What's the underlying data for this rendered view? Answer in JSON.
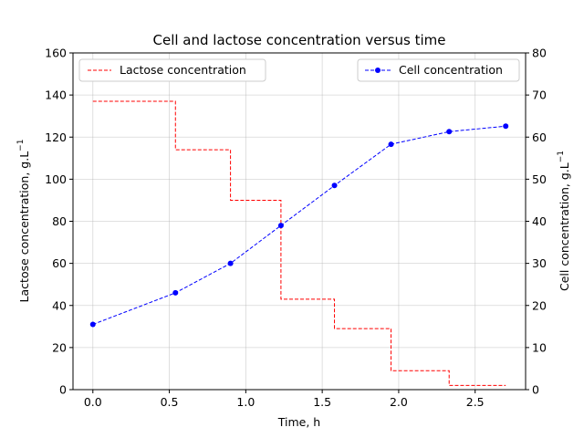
{
  "chart_data": {
    "type": "line",
    "title": "Cell and lactose concentration versus time",
    "xlabel": "Time, h",
    "ylabel_left": "Lactose concentration, g.L",
    "ylabel_right": "Cell concentration, g.L",
    "ylabel_unit_sup": "−1",
    "xlim": [
      -0.13,
      2.83
    ],
    "ylim_left": [
      0,
      160
    ],
    "ylim_right": [
      0,
      80
    ],
    "x_ticks": [
      0.0,
      0.5,
      1.0,
      1.5,
      2.0,
      2.5
    ],
    "x_tick_labels": [
      "0.0",
      "0.5",
      "1.0",
      "1.5",
      "2.0",
      "2.5"
    ],
    "y_left_ticks": [
      0,
      20,
      40,
      60,
      80,
      100,
      120,
      140,
      160
    ],
    "y_left_tick_labels": [
      "0",
      "20",
      "40",
      "60",
      "80",
      "100",
      "120",
      "140",
      "160"
    ],
    "y_right_ticks": [
      0,
      10,
      20,
      30,
      40,
      50,
      60,
      70,
      80
    ],
    "y_right_tick_labels": [
      "0",
      "10",
      "20",
      "30",
      "40",
      "50",
      "60",
      "70",
      "80"
    ],
    "grid": true,
    "series": [
      {
        "name": "Lactose concentration",
        "axis": "left",
        "style": "step-dashed",
        "color": "#ff0000",
        "x": [
          0.0,
          0.54,
          0.9,
          1.23,
          1.58,
          1.95,
          2.33,
          2.7
        ],
        "y": [
          137,
          114,
          90,
          43,
          29,
          9,
          2,
          2
        ]
      },
      {
        "name": "Cell concentration",
        "axis": "right",
        "style": "dashed-markers",
        "color": "#0000ff",
        "x": [
          0.0,
          0.54,
          0.9,
          1.23,
          1.58,
          1.95,
          2.33,
          2.7
        ],
        "y": [
          15.5,
          23.0,
          30.0,
          39.0,
          48.5,
          58.3,
          61.3,
          62.6
        ]
      }
    ],
    "legend_left": {
      "placement": "top-left",
      "label": "Lactose concentration"
    },
    "legend_right": {
      "placement": "top-right",
      "label": "Cell concentration"
    }
  }
}
